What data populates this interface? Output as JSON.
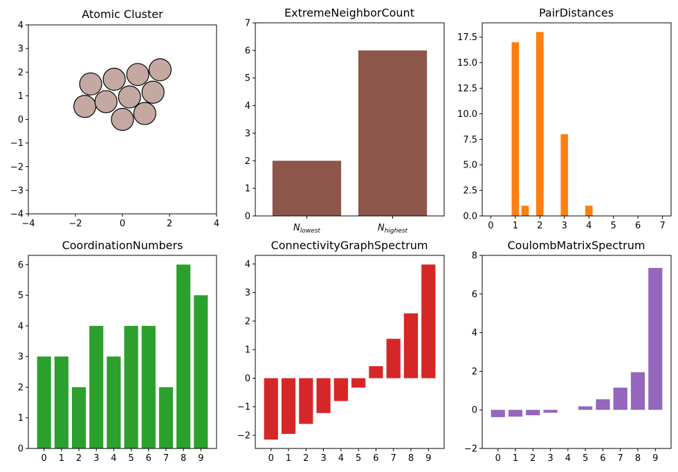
{
  "chart_data": [
    {
      "type": "scatter",
      "title": "Atomic Cluster",
      "xlim": [
        -4,
        4
      ],
      "ylim": [
        -4,
        4
      ],
      "xticks": [
        -4,
        -2,
        0,
        2,
        4
      ],
      "yticks": [
        -4,
        -3,
        -2,
        -1,
        0,
        1,
        2,
        3,
        4
      ],
      "atom_color": "#c4a8a2",
      "atoms": [
        {
          "x": -1.6,
          "y": 0.55
        },
        {
          "x": -1.35,
          "y": 1.5
        },
        {
          "x": -0.7,
          "y": 0.75
        },
        {
          "x": -0.35,
          "y": 1.7
        },
        {
          "x": 0.0,
          "y": 0.0
        },
        {
          "x": 0.3,
          "y": 0.95
        },
        {
          "x": 0.65,
          "y": 1.9
        },
        {
          "x": 0.95,
          "y": 0.25
        },
        {
          "x": 1.3,
          "y": 1.15
        },
        {
          "x": 1.6,
          "y": 2.1
        }
      ]
    },
    {
      "type": "bar",
      "title": "ExtremeNeighborCount",
      "categories": [
        "N_lowest",
        "N_highest"
      ],
      "category_labels": [
        {
          "main": "N",
          "sub": "lowest"
        },
        {
          "main": "N",
          "sub": "highest"
        }
      ],
      "values": [
        2,
        6
      ],
      "ylim": [
        0,
        7
      ],
      "yticks": [
        0,
        1,
        2,
        3,
        4,
        5,
        6,
        7
      ],
      "color": "#8c564b"
    },
    {
      "type": "bar",
      "title": "PairDistances",
      "x": [
        1.0,
        1.4,
        2.0,
        3.0,
        4.0
      ],
      "values": [
        17,
        1,
        18,
        8,
        1
      ],
      "bar_width": 0.3,
      "xlim": [
        -0.35,
        7.35
      ],
      "ylim": [
        0,
        18.9
      ],
      "xticks": [
        0,
        1,
        2,
        3,
        4,
        5,
        6,
        7
      ],
      "yticks": [
        "0.0",
        "2.5",
        "5.0",
        "7.5",
        "10.0",
        "12.5",
        "15.0",
        "17.5"
      ],
      "color": "#ff7f0e"
    },
    {
      "type": "bar",
      "title": "CoordinationNumbers",
      "categories": [
        "0",
        "1",
        "2",
        "3",
        "4",
        "5",
        "6",
        "7",
        "8",
        "9"
      ],
      "values": [
        3,
        3,
        2,
        4,
        3,
        4,
        4,
        2,
        6,
        5
      ],
      "ylim": [
        0,
        6.3
      ],
      "yticks": [
        0,
        1,
        2,
        3,
        4,
        5,
        6
      ],
      "color": "#2ca02c"
    },
    {
      "type": "bar",
      "title": "ConnectivityGraphSpectrum",
      "categories": [
        "0",
        "1",
        "2",
        "3",
        "4",
        "5",
        "6",
        "7",
        "8",
        "9"
      ],
      "values": [
        -2.15,
        -1.95,
        -1.6,
        -1.22,
        -0.8,
        -0.33,
        0.42,
        1.38,
        2.27,
        3.98
      ],
      "ylim": [
        -2.46,
        4.3
      ],
      "yticks": [
        "−2",
        "−1",
        "0",
        "1",
        "2",
        "3",
        "4"
      ],
      "ytick_values": [
        -2,
        -1,
        0,
        1,
        2,
        3,
        4
      ],
      "color": "#d62728"
    },
    {
      "type": "bar",
      "title": "CoulombMatrixSpectrum",
      "categories": [
        "0",
        "1",
        "2",
        "3",
        "4",
        "5",
        "6",
        "7",
        "8",
        "9"
      ],
      "values": [
        -0.38,
        -0.35,
        -0.28,
        -0.15,
        0.0,
        0.18,
        0.55,
        1.15,
        1.95,
        7.35
      ],
      "ylim": [
        -2,
        8
      ],
      "yticks": [
        "−2",
        "0",
        "2",
        "4",
        "6",
        "8"
      ],
      "ytick_values": [
        -2,
        0,
        2,
        4,
        6,
        8
      ],
      "color": "#9467bd"
    }
  ]
}
